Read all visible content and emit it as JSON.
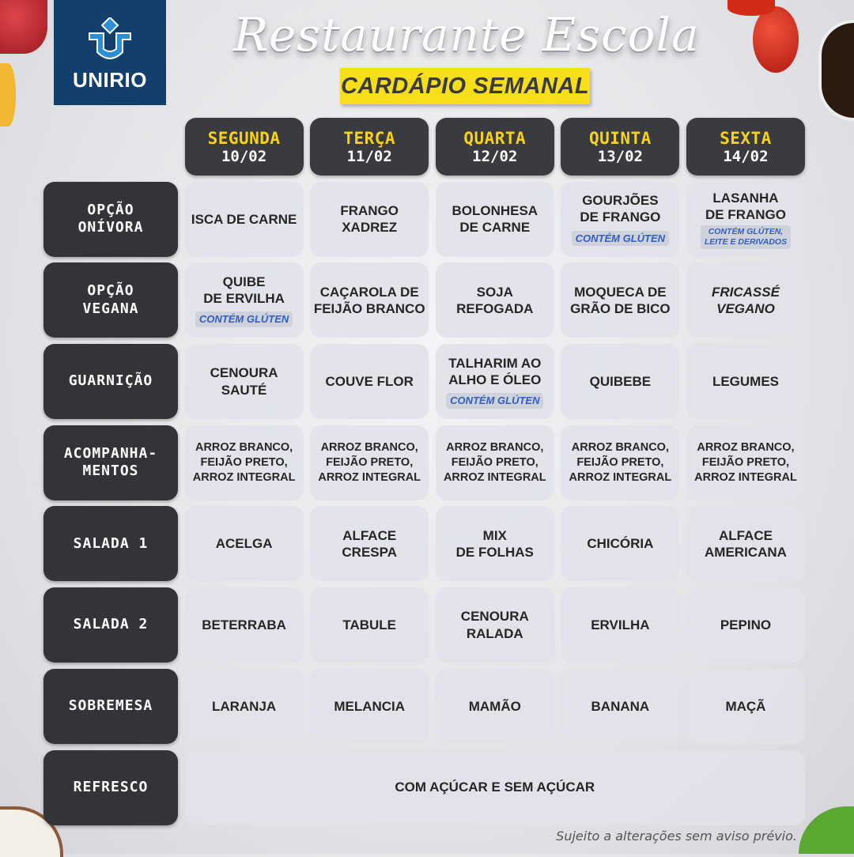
{
  "logo": {
    "text": "UNIRIO",
    "color": "#123f6b"
  },
  "title": "Restaurante Escola",
  "subtitle": "CARDÁPIO SEMANAL",
  "colors": {
    "day_name": "#f6d21a",
    "label_bg": "#333438",
    "note": "#2f5fbf",
    "subtitle_bg": "#f6df18"
  },
  "days": [
    {
      "name": "SEGUNDA",
      "date": "10/02"
    },
    {
      "name": "TERÇA",
      "date": "11/02"
    },
    {
      "name": "QUARTA",
      "date": "12/02"
    },
    {
      "name": "QUINTA",
      "date": "13/02"
    },
    {
      "name": "SEXTA",
      "date": "14/02"
    }
  ],
  "rows": [
    {
      "label": "OPÇÃO\nONÍVORA",
      "cells": [
        {
          "text": "ISCA DE CARNE"
        },
        {
          "text": "FRANGO\nXADREZ"
        },
        {
          "text": "BOLONHESA\nDE CARNE"
        },
        {
          "text": "GOURJÕES\nDE FRANGO",
          "note": "CONTÉM GLÚTEN"
        },
        {
          "text": "LASANHA\nDE FRANGO",
          "note": "CONTÉM GLÚTEN,\nLEITE E DERIVADOS"
        }
      ]
    },
    {
      "label": "OPÇÃO\nVEGANA",
      "cells": [
        {
          "text": "QUIBE\nDE ERVILHA",
          "note": "CONTÉM GLÚTEN"
        },
        {
          "text": "CAÇAROLA DE\nFEIJÃO BRANCO"
        },
        {
          "text": "SOJA\nREFOGADA"
        },
        {
          "text": "MOQUECA DE\nGRÃO DE BICO"
        },
        {
          "text": "FRICASSÉ\nVEGANO",
          "italic": true
        }
      ]
    },
    {
      "label": "GUARNIÇÃO",
      "cells": [
        {
          "text": "CENOURA\nSAUTÉ"
        },
        {
          "text": "COUVE FLOR"
        },
        {
          "text": "TALHARIM AO\nALHO E ÓLEO",
          "note": "CONTÉM GLÚTEN"
        },
        {
          "text": "QUIBEBE"
        },
        {
          "text": "LEGUMES"
        }
      ]
    },
    {
      "label": "ACOMPANHA-\nMENTOS",
      "small": true,
      "cells": [
        {
          "text": "ARROZ BRANCO,\nFEIJÃO PRETO,\nARROZ INTEGRAL"
        },
        {
          "text": "ARROZ BRANCO,\nFEIJÃO PRETO,\nARROZ INTEGRAL"
        },
        {
          "text": "ARROZ BRANCO,\nFEIJÃO PRETO,\nARROZ INTEGRAL"
        },
        {
          "text": "ARROZ BRANCO,\nFEIJÃO PRETO,\nARROZ INTEGRAL"
        },
        {
          "text": "ARROZ BRANCO,\nFEIJÃO PRETO,\nARROZ INTEGRAL"
        }
      ]
    },
    {
      "label": "SALADA 1",
      "cells": [
        {
          "text": "ACELGA"
        },
        {
          "text": "ALFACE\nCRESPA"
        },
        {
          "text": "MIX\nDE FOLHAS"
        },
        {
          "text": "CHICÓRIA"
        },
        {
          "text": "ALFACE\nAMERICANA"
        }
      ]
    },
    {
      "label": "SALADA 2",
      "cells": [
        {
          "text": "BETERRABA"
        },
        {
          "text": "TABULE"
        },
        {
          "text": "CENOURA\nRALADA"
        },
        {
          "text": "ERVILHA"
        },
        {
          "text": "PEPINO"
        }
      ]
    },
    {
      "label": "SOBREMESA",
      "cells": [
        {
          "text": "LARANJA"
        },
        {
          "text": "MELANCIA"
        },
        {
          "text": "MAMÃO"
        },
        {
          "text": "BANANA"
        },
        {
          "text": "MAÇÃ"
        }
      ]
    },
    {
      "label": "REFRESCO",
      "span": true,
      "cells": [
        {
          "text": "COM AÇÚCAR E SEM AÇÚCAR"
        }
      ]
    }
  ],
  "footer": "Sujeito a alterações sem aviso prévio."
}
